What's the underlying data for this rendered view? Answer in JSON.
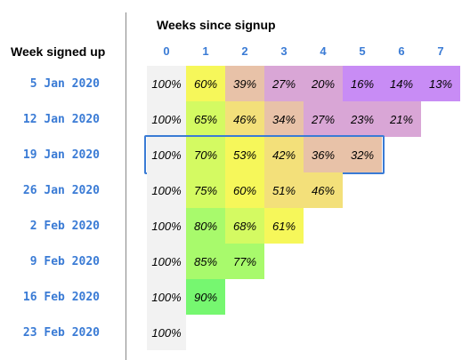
{
  "chart_data": {
    "type": "heatmap",
    "title": "Weeks since signup",
    "row_axis_label": "Week signed up",
    "columns": [
      "0",
      "1",
      "2",
      "3",
      "4",
      "5",
      "6",
      "7"
    ],
    "rows": [
      {
        "label": "5 Jan 2020",
        "values": [
          100,
          60,
          39,
          27,
          20,
          16,
          14,
          13
        ]
      },
      {
        "label": "12 Jan 2020",
        "values": [
          100,
          65,
          46,
          34,
          27,
          23,
          21
        ]
      },
      {
        "label": "19 Jan 2020",
        "values": [
          100,
          70,
          53,
          42,
          36,
          32
        ]
      },
      {
        "label": "26 Jan 2020",
        "values": [
          100,
          75,
          60,
          51,
          46
        ]
      },
      {
        "label": "2 Feb 2020",
        "values": [
          100,
          80,
          68,
          61
        ]
      },
      {
        "label": "9 Feb 2020",
        "values": [
          100,
          85,
          77
        ]
      },
      {
        "label": "16 Feb 2020",
        "values": [
          100,
          90
        ]
      },
      {
        "label": "23 Feb 2020",
        "values": [
          100
        ]
      }
    ],
    "value_suffix": "%",
    "highlighted_row": "19 Jan 2020",
    "colors": {
      "week0": "#f2f2f2",
      "scale": [
        "#c88cf5",
        "#d9a6d6",
        "#e8c2a8",
        "#f3e07a",
        "#f6f75a",
        "#d4fa62",
        "#a8fa6c",
        "#76f770"
      ],
      "label": "#3a7bd5",
      "highlight_border": "#3a7bd5"
    }
  }
}
